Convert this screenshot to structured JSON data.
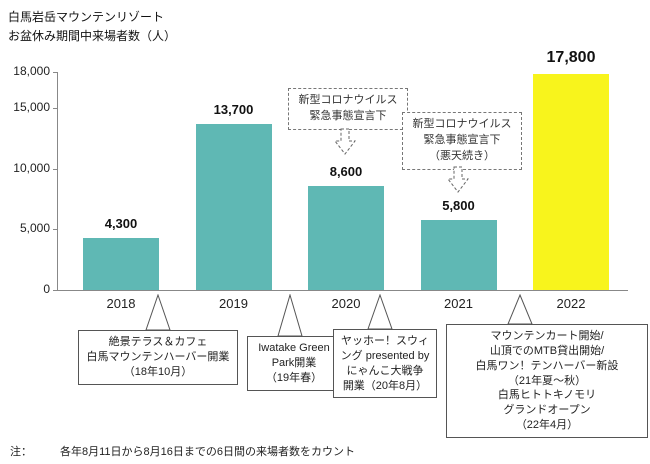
{
  "title": {
    "line1": "白馬岩岳マウンテンリゾート",
    "line2": "お盆休み期間中来場者数（人）"
  },
  "chart_data": {
    "type": "bar",
    "title": "白馬岩岳マウンテンリゾート お盆休み期間中来場者数（人）",
    "categories": [
      "2018",
      "2019",
      "2020",
      "2021",
      "2022"
    ],
    "values": [
      4300,
      13700,
      8600,
      5800,
      17800
    ],
    "value_labels": [
      "4,300",
      "13,700",
      "8,600",
      "5,800",
      "17,800"
    ],
    "ylim": [
      0,
      18000
    ],
    "yticks": [
      0,
      5000,
      10000,
      15000,
      18000
    ],
    "ytick_labels": [
      "0",
      "5,000",
      "10,000",
      "15,000",
      "18,000"
    ],
    "bar_colors": [
      "#5FB8B4",
      "#5FB8B4",
      "#5FB8B4",
      "#5FB8B4",
      "#F8F41C"
    ],
    "highlight_index": 4,
    "grid": false,
    "legend": "none"
  },
  "annotations": [
    {
      "lines": [
        "新型コロナウイルス",
        "緊急事態宣言下"
      ],
      "target_year": "2020"
    },
    {
      "lines": [
        "新型コロナウイルス",
        "緊急事態宣言下",
        "（悪天続き）"
      ],
      "target_year": "2021"
    }
  ],
  "callouts": [
    {
      "lines": [
        "絶景テラス＆カフェ",
        "白馬マウンテンハーバー開業",
        "（18年10月）"
      ],
      "target_year": "2018"
    },
    {
      "lines": [
        "Iwatake Green",
        "Park開業",
        "（19年春）"
      ],
      "target_year": "2019"
    },
    {
      "lines": [
        "ヤッホー！スウィ",
        "ング presented by",
        "にゃんこ大戦争",
        "開業（20年8月）"
      ],
      "target_year": "2020"
    },
    {
      "lines": [
        "マウンテンカート開始/",
        "山頂でのMTB貸出開始/",
        "白馬ワン！テンハーバー新設",
        "（21年夏〜秋）",
        "白馬ヒトトキノモリ",
        "グランドオープン",
        "（22年4月）"
      ],
      "target_year": "2022"
    }
  ],
  "footnote": {
    "label": "注：",
    "text": "各年8月11日から8月16日までの6日間の来場者数をカウント"
  }
}
